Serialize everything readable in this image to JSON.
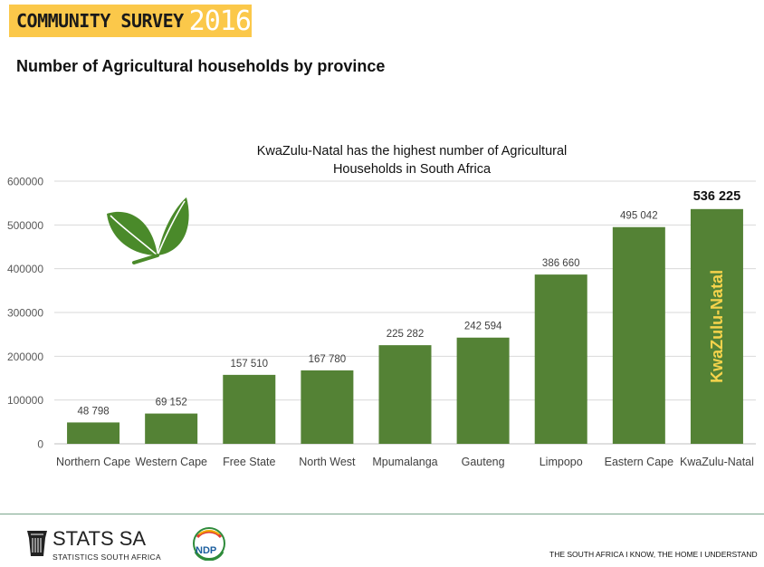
{
  "banner": {
    "label": "COMMUNITY SURVEY",
    "year": "2016"
  },
  "page_title": "Number of Agricultural households by province",
  "chart_data": {
    "type": "bar",
    "title": "KwaZulu-Natal has the highest number of Agricultural Households in South Africa",
    "title_lines": [
      "KwaZulu-Natal has the highest number of Agricultural",
      "Households in South Africa"
    ],
    "categories": [
      "Northern Cape",
      "Western Cape",
      "Free State",
      "North West",
      "Mpumalanga",
      "Gauteng",
      "Limpopo",
      "Eastern Cape",
      "KwaZulu-Natal"
    ],
    "values": [
      48798,
      69152,
      157510,
      167780,
      225282,
      242594,
      386660,
      495042,
      536225
    ],
    "data_labels": [
      "48 798",
      "69 152",
      "157 510",
      "167 780",
      "225 282",
      "242 594",
      "386 660",
      "495 042",
      "536 225"
    ],
    "highlight_label": "KwaZulu-Natal",
    "highlight_index": 8,
    "ylim": [
      0,
      600000
    ],
    "yticks": [
      0,
      100000,
      200000,
      300000,
      400000,
      500000,
      600000
    ],
    "ytick_labels": [
      "0",
      "100000",
      "200000",
      "300000",
      "400000",
      "500000",
      "600000"
    ],
    "xlabel": "",
    "ylabel": "",
    "grid": true,
    "bar_color": "#548235",
    "highlight_text_color": "#f5d34c"
  },
  "footer": {
    "logo_main": "STATS SA",
    "logo_sub": "STATISTICS SOUTH AFRICA",
    "ndp_label": "NDP",
    "tagline": "THE SOUTH AFRICA I KNOW, THE HOME I UNDERSTAND"
  },
  "colors": {
    "banner": "#fbc84a",
    "leaf": "#4a8a2a",
    "grid": "#d9d9d9"
  }
}
